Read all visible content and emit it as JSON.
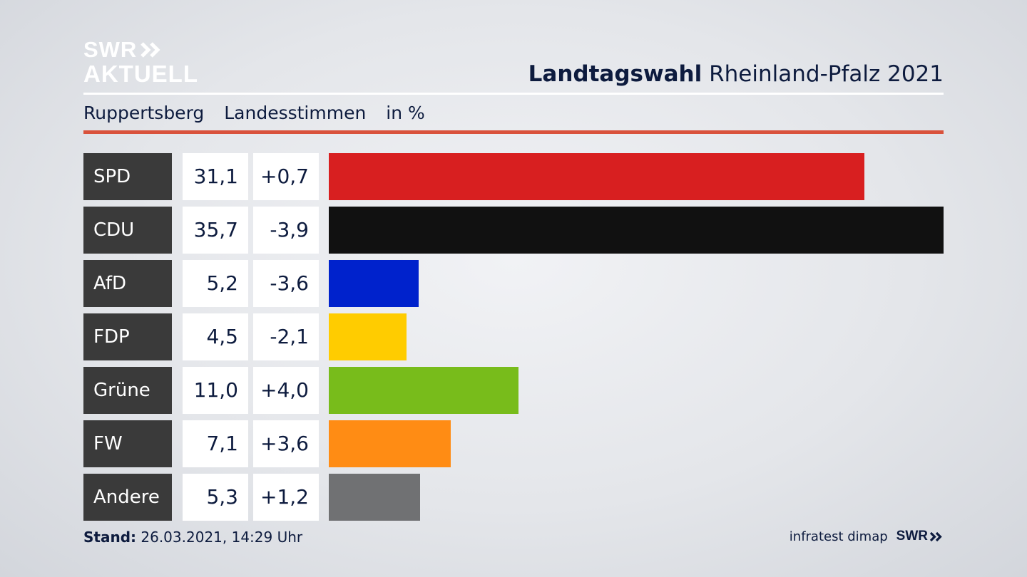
{
  "brand": {
    "logo_line1": "SWR",
    "logo_line2": "AKTUELL"
  },
  "header": {
    "title_bold": "Landtagswahl",
    "title_rest": "Rheinland-Pfalz 2021"
  },
  "subheader": {
    "location": "Ruppertsberg",
    "measure": "Landesstimmen",
    "unit": "in %"
  },
  "chart_data": {
    "type": "bar",
    "orientation": "horizontal",
    "categories": [
      "SPD",
      "CDU",
      "AfD",
      "FDP",
      "Grüne",
      "FW",
      "Andere"
    ],
    "values": [
      31.1,
      35.7,
      5.2,
      4.5,
      11.0,
      7.1,
      5.3
    ],
    "value_labels": [
      "31,1",
      "35,7",
      "5,2",
      "4,5",
      "11,0",
      "7,1",
      "5,3"
    ],
    "changes": [
      0.7,
      -3.9,
      -3.6,
      -2.1,
      4.0,
      3.6,
      1.2
    ],
    "change_labels": [
      "+0,7",
      "-3,9",
      "-3,6",
      "-2,1",
      "+4,0",
      "+3,6",
      "+1,2"
    ],
    "colors": [
      "#d81f20",
      "#111111",
      "#0022cc",
      "#ffcc00",
      "#78bc1b",
      "#ff8c14",
      "#707173"
    ],
    "xlim": [
      0,
      35.7
    ],
    "grid": false,
    "legend": "none"
  },
  "footer": {
    "stand_label": "Stand:",
    "stand_value": "26.03.2021, 14:29 Uhr",
    "source": "infratest dimap",
    "source_logo": "SWR"
  }
}
